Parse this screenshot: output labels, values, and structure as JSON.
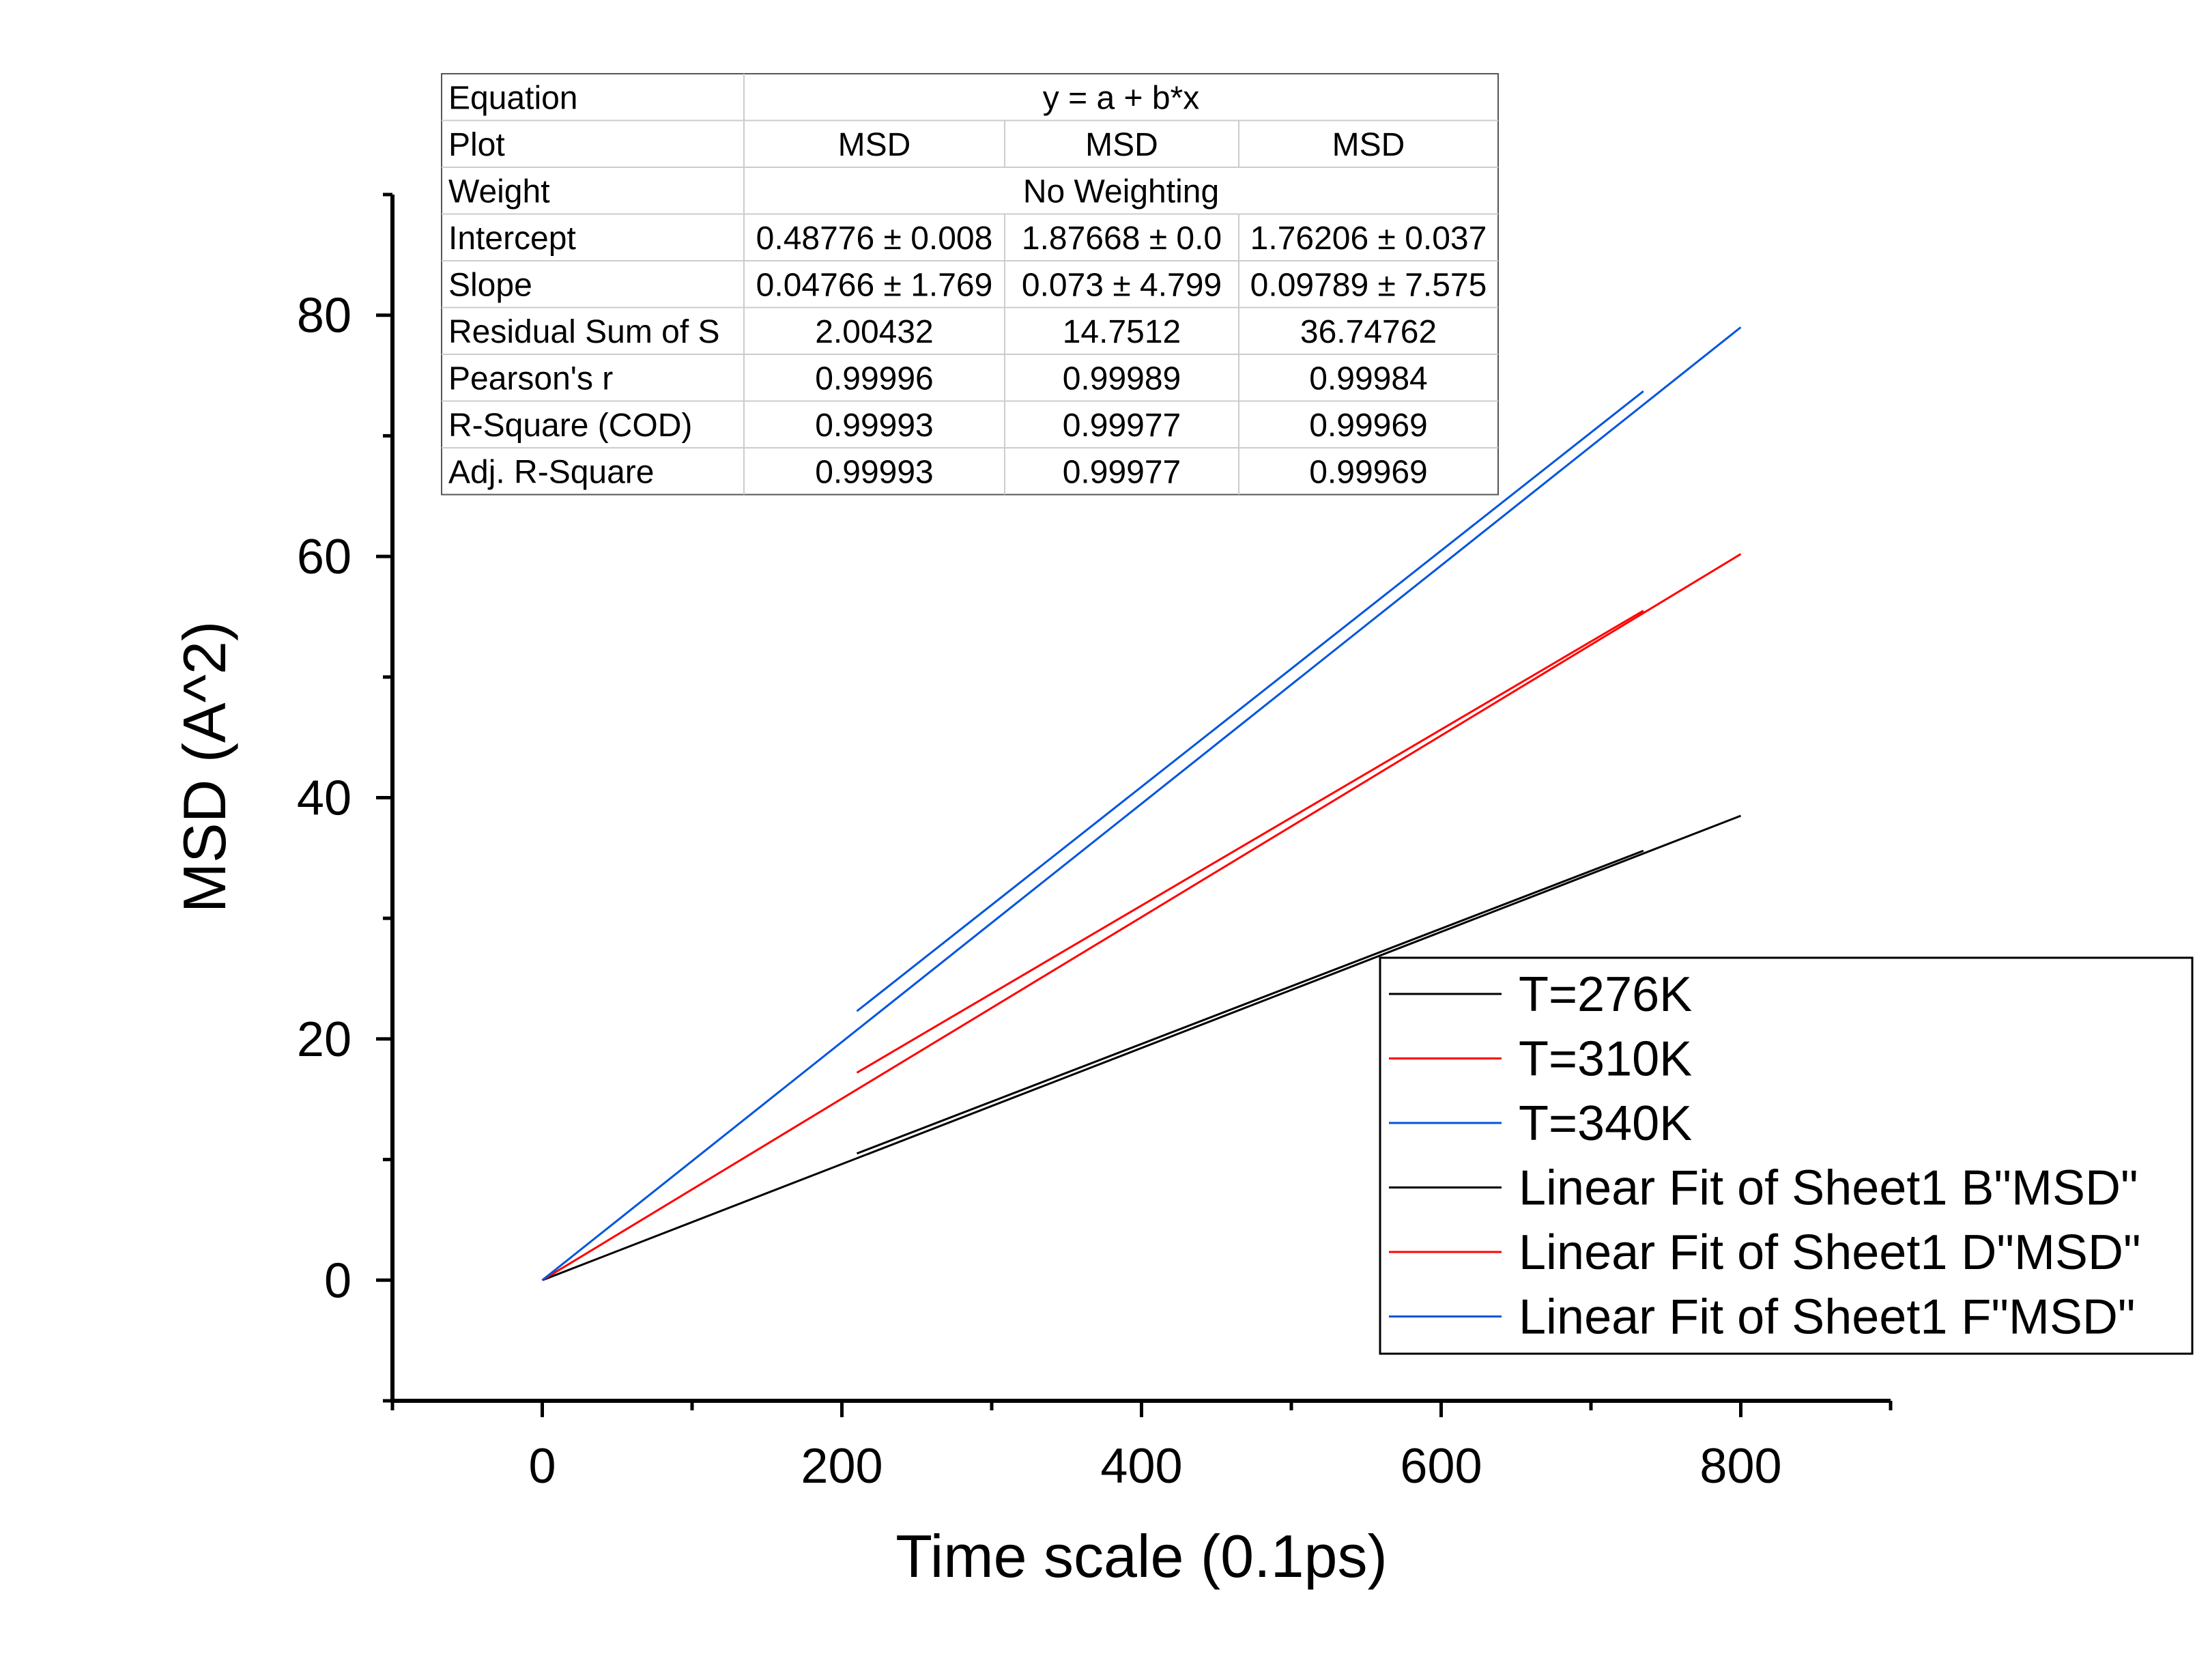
{
  "chart_data": {
    "type": "line",
    "xlabel": "Time scale (0.1ps)",
    "ylabel": "MSD (A^2)",
    "xlim": [
      -100,
      900
    ],
    "ylim": [
      -10,
      90
    ],
    "xticks": [
      0,
      200,
      400,
      600,
      800
    ],
    "xtick_labels": [
      "0",
      "200",
      "400",
      "600",
      "800"
    ],
    "x_minor_ticks": [
      -100,
      100,
      300,
      500,
      700,
      900
    ],
    "yticks": [
      0,
      20,
      40,
      60,
      80
    ],
    "ytick_labels": [
      "0",
      "20",
      "40",
      "60",
      "80"
    ],
    "y_minor_ticks": [
      -10,
      10,
      30,
      50,
      70,
      90
    ],
    "grid": false,
    "legend_position": "lower-right",
    "series": [
      {
        "name": "T=276K",
        "color": "#000000",
        "kind": "data",
        "x": [
          0,
          800
        ],
        "y": [
          0,
          38.5
        ]
      },
      {
        "name": "T=310K",
        "color": "#ff0000",
        "kind": "data",
        "x": [
          0,
          800
        ],
        "y": [
          0,
          60.2
        ]
      },
      {
        "name": "T=340K",
        "color": "#0055dd",
        "kind": "data",
        "x": [
          0,
          800
        ],
        "y": [
          0,
          79
        ]
      },
      {
        "name": "Linear Fit of Sheet1 B\"MSD\"",
        "color": "#000000",
        "kind": "fit",
        "x": [
          210,
          735
        ],
        "y": [
          10.5,
          35.6
        ]
      },
      {
        "name": "Linear Fit of Sheet1 D\"MSD\"",
        "color": "#ff0000",
        "kind": "fit",
        "x": [
          210,
          735
        ],
        "y": [
          17.2,
          55.5
        ]
      },
      {
        "name": "Linear Fit of Sheet1 F\"MSD\"",
        "color": "#0055dd",
        "kind": "fit",
        "x": [
          210,
          735
        ],
        "y": [
          22.3,
          73.7
        ]
      }
    ],
    "fit_table": {
      "rows": [
        {
          "label": "Equation",
          "span": "y = a + b*x"
        },
        {
          "label": "Plot",
          "cells": [
            "MSD",
            "MSD",
            "MSD"
          ]
        },
        {
          "label": "Weight",
          "span": "No Weighting"
        },
        {
          "label": "Intercept",
          "cells": [
            "0.48776 ± 0.008",
            "1.87668 ± 0.0",
            "1.76206 ± 0.037"
          ]
        },
        {
          "label": "Slope",
          "cells": [
            "0.04766 ± 1.769",
            "0.073 ± 4.799",
            "0.09789 ± 7.575"
          ]
        },
        {
          "label": "Residual Sum of S",
          "cells": [
            "2.00432",
            "14.7512",
            "36.74762"
          ]
        },
        {
          "label": "Pearson's r",
          "cells": [
            "0.99996",
            "0.99989",
            "0.99984"
          ]
        },
        {
          "label": "R-Square (COD)",
          "cells": [
            "0.99993",
            "0.99977",
            "0.99969"
          ]
        },
        {
          "label": "Adj. R-Square",
          "cells": [
            "0.99993",
            "0.99977",
            "0.99969"
          ]
        }
      ]
    }
  }
}
